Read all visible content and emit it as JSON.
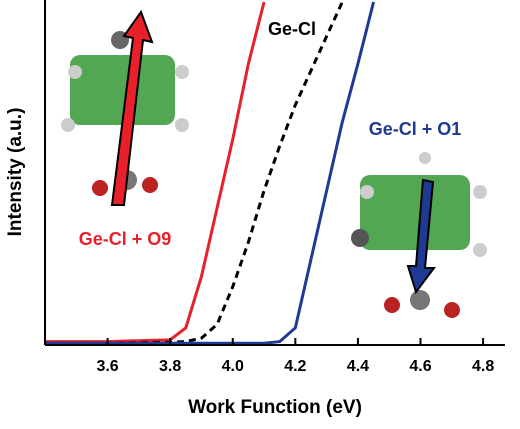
{
  "chart_data": {
    "type": "line",
    "xlabel": "Work Function (eV)",
    "ylabel": "Intensity (a.u.)",
    "x": [
      3.4,
      3.6,
      3.8,
      3.85,
      3.9,
      3.95,
      4.0,
      4.05,
      4.1,
      4.15,
      4.2,
      4.25,
      4.3,
      4.35,
      4.4,
      4.45
    ],
    "series": [
      {
        "name": "Ge-Cl + O9",
        "color": "#e8202a",
        "dash": false,
        "values": [
          0.01,
          0.01,
          0.015,
          0.05,
          0.2,
          0.4,
          0.6,
          0.82,
          1.0,
          null,
          null,
          null,
          null,
          null,
          null,
          null
        ]
      },
      {
        "name": "Ge-Cl",
        "color": "#000000",
        "dash": true,
        "values": [
          0.005,
          0.005,
          0.008,
          0.01,
          0.02,
          0.06,
          0.17,
          0.3,
          0.45,
          0.58,
          0.7,
          0.8,
          0.9,
          1.0,
          null,
          null
        ]
      },
      {
        "name": "Ge-Cl + O1",
        "color": "#1f3a93",
        "dash": false,
        "values": [
          0.005,
          0.005,
          0.005,
          0.005,
          0.005,
          0.005,
          0.005,
          0.005,
          0.005,
          0.01,
          0.05,
          0.25,
          0.45,
          0.65,
          0.82,
          1.0
        ]
      }
    ],
    "xlim": [
      3.4,
      4.87
    ],
    "ylim": [
      0,
      1
    ],
    "xticks": [
      3.6,
      3.8,
      {
        "value": 4.0,
        "label": "4.0"
      },
      4.2,
      4.4,
      4.6,
      4.8
    ]
  }
}
